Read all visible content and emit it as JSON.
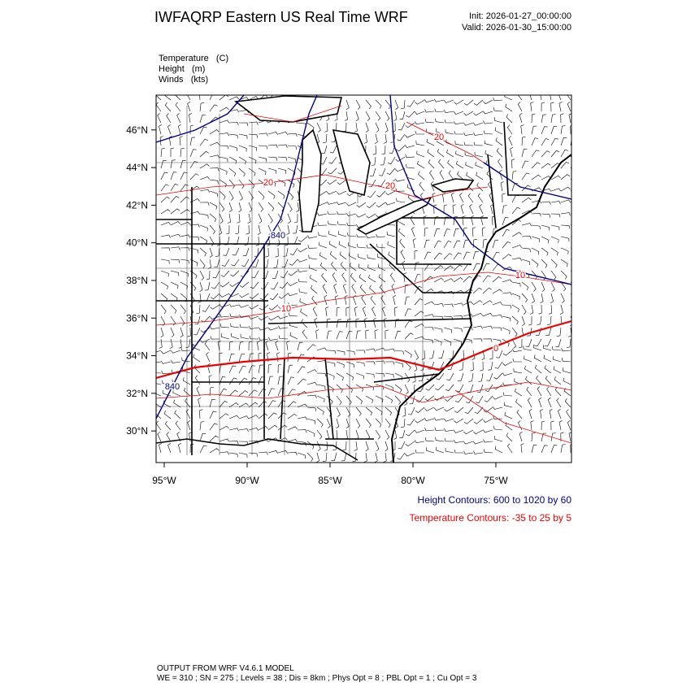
{
  "header": {
    "title": "IWFAQRP Eastern US Real Time WRF",
    "init": "Init: 2026-01-27_00:00:00",
    "valid": "Valid: 2026-01-30_15:00:00"
  },
  "fields": [
    "Temperature   (C)",
    "Height   (m)",
    "Winds   (kts)"
  ],
  "map": {
    "lon_range": [
      -95.49,
      -70.44
    ],
    "lat_range": [
      28.32,
      47.85
    ],
    "xticks": [
      {
        "value": -95,
        "label": "95°W"
      },
      {
        "value": -90,
        "label": "90°W"
      },
      {
        "value": -85,
        "label": "85°W"
      },
      {
        "value": -80,
        "label": "80°W"
      },
      {
        "value": -75,
        "label": "75°W"
      }
    ],
    "yticks": [
      {
        "value": 30,
        "label": "30°N"
      },
      {
        "value": 32,
        "label": "32°N"
      },
      {
        "value": 34,
        "label": "34°N"
      },
      {
        "value": 36,
        "label": "36°N"
      },
      {
        "value": 38,
        "label": "38°N"
      },
      {
        "value": 40,
        "label": "40°N"
      },
      {
        "value": 42,
        "label": "42°N"
      },
      {
        "value": 44,
        "label": "44°N"
      },
      {
        "value": 46,
        "label": "46°N"
      }
    ],
    "contour_labels": [
      "20",
      "20",
      "20",
      "840",
      "840",
      "10",
      "10",
      "0"
    ]
  },
  "legend": {
    "height": "Height Contours: 600 to 1020 by 60",
    "temperature": "Temperature Contours: -35 to 25 by 5"
  },
  "footer": {
    "line1": "OUTPUT FROM WRF V4.6.1 MODEL",
    "line2": "WE = 310 ; SN = 275 ; Levels = 38 ; Dis = 8km ; Phys Opt = 8 ; PBL Opt = 1 ; Cu Opt = 3"
  }
}
